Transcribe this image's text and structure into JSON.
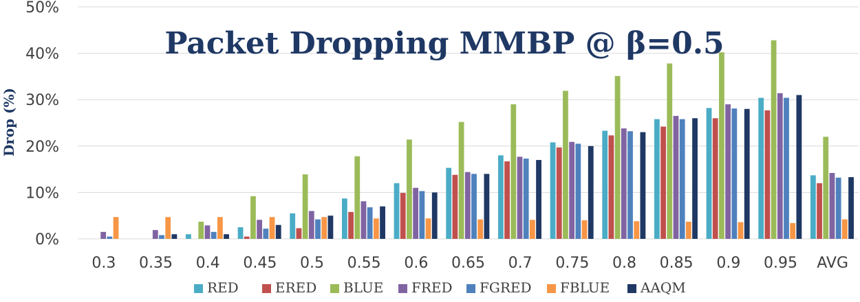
{
  "chart_data": {
    "type": "bar",
    "title": "Packet Dropping MMBP @ β=0.5",
    "xlabel": "",
    "ylabel": "Drop (%)",
    "ylim": [
      0,
      50
    ],
    "yticks": [
      "0%",
      "10%",
      "20%",
      "30%",
      "40%",
      "50%"
    ],
    "grid": true,
    "legend_position": "bottom",
    "categories": [
      "0.3",
      "0.35",
      "0.4",
      "0.45",
      "0.5",
      "0.55",
      "0.6",
      "0.65",
      "0.7",
      "0.75",
      "0.8",
      "0.85",
      "0.9",
      "0.95",
      "AVG"
    ],
    "series": [
      {
        "name": "RED",
        "color": "#4bacc6",
        "values": [
          0,
          0,
          1.0,
          2.5,
          5.5,
          8.7,
          12.0,
          15.3,
          18.0,
          20.8,
          23.3,
          25.8,
          28.2,
          30.4,
          13.7
        ]
      },
      {
        "name": "ERED",
        "color": "#c0504d",
        "values": [
          0,
          0,
          0,
          0.5,
          2.3,
          5.8,
          9.9,
          13.8,
          16.7,
          19.7,
          22.3,
          24.2,
          26.0,
          27.7,
          12.0
        ]
      },
      {
        "name": "BLUE",
        "color": "#9bbb59",
        "values": [
          0,
          0,
          3.7,
          9.2,
          13.9,
          17.8,
          21.4,
          25.2,
          29.0,
          31.9,
          35.1,
          37.8,
          40.2,
          42.8,
          22.0
        ]
      },
      {
        "name": "FRED",
        "color": "#8064a2",
        "values": [
          1.5,
          1.9,
          2.9,
          4.1,
          6.0,
          8.1,
          11.0,
          14.4,
          17.7,
          20.9,
          23.8,
          26.5,
          29.0,
          31.4,
          14.2
        ]
      },
      {
        "name": "FGRED",
        "color": "#4f81bd",
        "values": [
          0.5,
          0.8,
          1.5,
          2.2,
          4.2,
          6.8,
          10.3,
          14.0,
          17.3,
          20.5,
          23.2,
          25.8,
          28.1,
          30.4,
          13.2
        ]
      },
      {
        "name": "FBLUE",
        "color": "#f79646",
        "values": [
          4.7,
          4.7,
          4.7,
          4.7,
          4.7,
          4.4,
          4.4,
          4.2,
          4.1,
          4.0,
          3.8,
          3.7,
          3.6,
          3.4,
          4.2
        ]
      },
      {
        "name": "AAQM",
        "color": "#1f3864",
        "values": [
          0,
          1.0,
          1.0,
          3.0,
          5.0,
          7.0,
          10.0,
          14.0,
          17.0,
          20.0,
          23.0,
          26.0,
          28.0,
          31.0,
          13.3
        ]
      }
    ]
  }
}
